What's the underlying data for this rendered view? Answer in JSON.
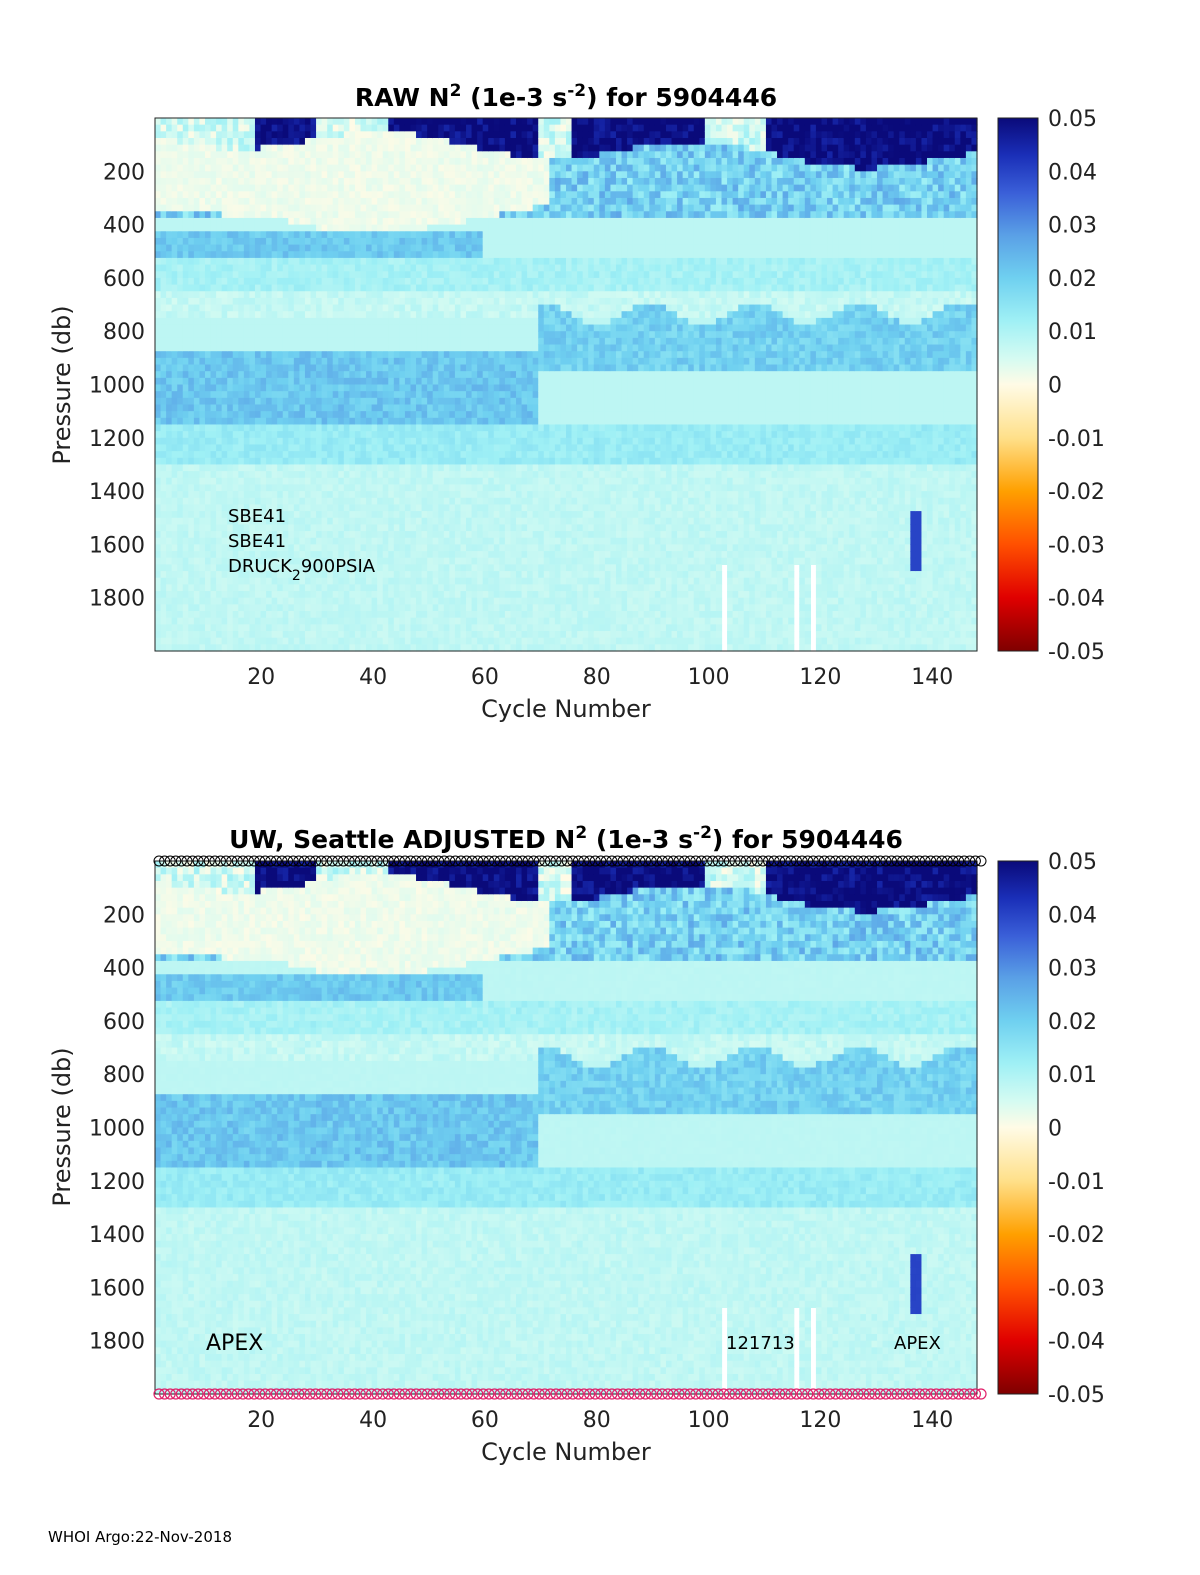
{
  "footer": "WHOI Argo:22-Nov-2018",
  "colormap": {
    "stops": [
      [
        0.0,
        "#7f0000"
      ],
      [
        0.1,
        "#e00000"
      ],
      [
        0.2,
        "#ff5000"
      ],
      [
        0.3,
        "#ffa000"
      ],
      [
        0.4,
        "#ffe08a"
      ],
      [
        0.5,
        "#fffbe6"
      ],
      [
        0.55,
        "#d4fbf2"
      ],
      [
        0.62,
        "#9ff0f5"
      ],
      [
        0.7,
        "#6fd0f0"
      ],
      [
        0.78,
        "#5aa0e6"
      ],
      [
        0.86,
        "#3a5fd8"
      ],
      [
        0.93,
        "#1a2fb8"
      ],
      [
        1.0,
        "#0a0a7a"
      ]
    ]
  },
  "chart_data": [
    {
      "type": "heatmap",
      "title_prefix": "RAW N",
      "title_sup": "2",
      "title_mid": " (1e-3 s",
      "title_sup2": "-2",
      "title_suffix": ") for 5904446",
      "xlabel": "Cycle Number",
      "ylabel": "Pressure (db)",
      "xlim": [
        1,
        148
      ],
      "ylim": [
        2000,
        0
      ],
      "xticks": [
        "20",
        "40",
        "60",
        "80",
        "100",
        "120",
        "140"
      ],
      "xtick_values": [
        20,
        40,
        60,
        80,
        100,
        120,
        140
      ],
      "yticks": [
        "200",
        "400",
        "600",
        "800",
        "1000",
        "1200",
        "1400",
        "1600",
        "1800"
      ],
      "ytick_values": [
        200,
        400,
        600,
        800,
        1000,
        1200,
        1400,
        1600,
        1800
      ],
      "clim": [
        -0.05,
        0.05
      ],
      "colorbar_ticks": [
        "0.05",
        "0.04",
        "0.03",
        "0.02",
        "0.01",
        "0",
        "-0.01",
        "-0.02",
        "-0.03",
        "-0.04",
        "-0.05"
      ],
      "colorbar_values": [
        0.05,
        0.04,
        0.03,
        0.02,
        0.01,
        0,
        -0.01,
        -0.02,
        -0.03,
        -0.04,
        -0.05
      ],
      "annotations": {
        "line1": "SBE41",
        "line2": "SBE41",
        "line3_main": "DRUCK",
        "line3_sub": "2",
        "line3_tail": "900PSIA"
      },
      "gap_cycles": [
        103,
        116,
        119
      ],
      "notes_values": "Values of N^2 vary with pressure: strong positive (dark blue) near the surface for later cycles, near-zero (cream) 100–450 db for cycles 2–70, moderate (0.02) bands near 450–500 and 800–1100 db, small positive (~0.008) below 1200 db."
    },
    {
      "type": "heatmap",
      "title_prefix": "UW, Seattle  ADJUSTED N",
      "title_sup": "2",
      "title_mid": " (1e-3 s",
      "title_sup2": "-2",
      "title_suffix": ") for 5904446",
      "xlabel": "Cycle Number",
      "ylabel": "Pressure (db)",
      "xlim": [
        1,
        148
      ],
      "ylim": [
        2000,
        0
      ],
      "xticks": [
        "20",
        "40",
        "60",
        "80",
        "100",
        "120",
        "140"
      ],
      "xtick_values": [
        20,
        40,
        60,
        80,
        100,
        120,
        140
      ],
      "yticks": [
        "200",
        "400",
        "600",
        "800",
        "1000",
        "1200",
        "1400",
        "1600",
        "1800"
      ],
      "ytick_values": [
        200,
        400,
        600,
        800,
        1000,
        1200,
        1400,
        1600,
        1800
      ],
      "clim": [
        -0.05,
        0.05
      ],
      "colorbar_ticks": [
        "0.05",
        "0.04",
        "0.03",
        "0.02",
        "0.01",
        "0",
        "-0.01",
        "-0.02",
        "-0.03",
        "-0.04",
        "-0.05"
      ],
      "colorbar_values": [
        0.05,
        0.04,
        0.03,
        0.02,
        0.01,
        0,
        -0.01,
        -0.02,
        -0.03,
        -0.04,
        -0.05
      ],
      "annotations": {
        "left": "APEX",
        "middle": "121713",
        "right": "APEX"
      },
      "top_markers": {
        "symbol": "circle",
        "color": "#000000",
        "count": 148
      },
      "bottom_markers": {
        "symbol": "circle",
        "color": "#e0206a",
        "count": 148
      },
      "gap_cycles": [
        103,
        116,
        119
      ]
    }
  ]
}
